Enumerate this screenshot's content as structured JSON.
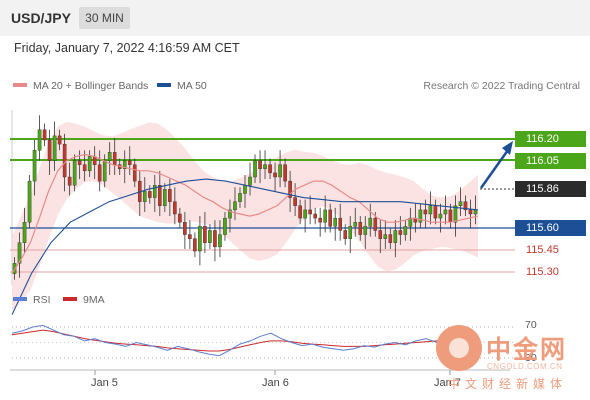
{
  "header": {
    "symbol": "USD/JPY",
    "timeframe": "30 MIN",
    "datetime": "Friday, January 7, 2022 4:16:59 AM CET"
  },
  "legend": {
    "ma20_label": "MA 20 + Bollinger Bands",
    "ma50_label": "MA 50",
    "research": "Research © 2022 Trading Central"
  },
  "price_levels": {
    "r2": "116.20",
    "r1": "116.05",
    "last": "115.86",
    "s1": "115.60",
    "s2": "115.45",
    "s3": "115.30"
  },
  "rsi": {
    "label": "RSI",
    "ma_label": "9MA",
    "level_70": "70",
    "level_30": "30"
  },
  "x_axis": {
    "labels": [
      "Jan 5",
      "Jan 6",
      "Jan 7"
    ]
  },
  "watermark": {
    "big": "中金网",
    "small": "CNGOLD.COM.CN",
    "sub": "中文财经新媒体"
  },
  "colors": {
    "up": "#4ca619",
    "down": "#c0392b",
    "ma20": "#e88a8a",
    "ma50": "#1c4f96",
    "band_fill": "#fbdcdc",
    "rsi": "#5b7fd4",
    "rsi_ma": "#cc2a2a"
  },
  "chart_data": {
    "type": "candlestick",
    "y_range": [
      115.3,
      116.3
    ],
    "close": [
      115.6,
      115.7,
      115.8,
      116.0,
      116.15,
      116.25,
      116.2,
      116.1,
      116.22,
      116.18,
      116.02,
      115.98,
      116.1,
      116.08,
      116.05,
      116.12,
      116.08,
      116.0,
      116.1,
      116.14,
      116.08,
      116.06,
      116.1,
      116.08,
      116.0,
      115.9,
      115.95,
      115.92,
      115.98,
      115.88,
      115.96,
      115.9,
      115.84,
      115.8,
      115.74,
      115.72,
      115.66,
      115.78,
      115.7,
      115.76,
      115.68,
      115.74,
      115.82,
      115.86,
      115.9,
      115.94,
      115.98,
      116.02,
      116.1,
      116.06,
      116.08,
      116.04,
      116.02,
      116.08,
      116.0,
      115.92,
      115.88,
      115.82,
      115.86,
      115.84,
      115.82,
      115.8,
      115.86,
      115.78,
      115.82,
      115.76,
      115.72,
      115.78,
      115.8,
      115.74,
      115.78,
      115.82,
      115.76,
      115.72,
      115.74,
      115.7,
      115.76,
      115.74,
      115.78,
      115.82,
      115.8,
      115.86,
      115.84,
      115.88,
      115.82,
      115.84,
      115.86,
      115.8,
      115.88,
      115.9,
      115.86,
      115.84,
      115.86
    ],
    "ma20": [
      115.55,
      115.62,
      115.7,
      115.82,
      115.95,
      116.05,
      116.1,
      116.12,
      116.13,
      116.12,
      116.1,
      116.08,
      116.07,
      116.06,
      116.05,
      116.05,
      116.04,
      116.02,
      116.0,
      115.98,
      115.95,
      115.92,
      115.9,
      115.87,
      115.85,
      115.84,
      115.83,
      115.84,
      115.86,
      115.88,
      115.92,
      115.96,
      115.98,
      116.0,
      116.0,
      115.98,
      115.95,
      115.92,
      115.9,
      115.86,
      115.82,
      115.8,
      115.8,
      115.81,
      115.82,
      115.81,
      115.8,
      115.8,
      115.8,
      115.81,
      115.82,
      115.83
    ],
    "ma50": [
      115.35,
      115.55,
      115.7,
      115.8,
      115.85,
      115.9,
      115.93,
      115.96,
      115.98,
      116.0,
      116.01,
      116.0,
      115.98,
      115.96,
      115.94,
      115.92,
      115.91,
      115.9,
      115.9,
      115.9,
      115.9,
      115.89,
      115.88,
      115.87,
      115.86
    ],
    "rsi": [
      62,
      65,
      70,
      72,
      66,
      60,
      58,
      52,
      55,
      50,
      48,
      45,
      50,
      47,
      44,
      40,
      45,
      42,
      38,
      35,
      33,
      40,
      48,
      52,
      58,
      62,
      55,
      50,
      46,
      48,
      44,
      42,
      40,
      42,
      46,
      44,
      48,
      50,
      47,
      52,
      55,
      50,
      56,
      58,
      54,
      52
    ],
    "rsi_ma": [
      60,
      62,
      64,
      66,
      64,
      61,
      58,
      55,
      53,
      51,
      49,
      48,
      47,
      46,
      45,
      43,
      42,
      41,
      40,
      39,
      39,
      41,
      44,
      47,
      50,
      52,
      52,
      51,
      49,
      48,
      47,
      46,
      45,
      45,
      45,
      46,
      47,
      48,
      49,
      50,
      51,
      52,
      53,
      54,
      54,
      54
    ],
    "forecast_target": "116.20"
  }
}
